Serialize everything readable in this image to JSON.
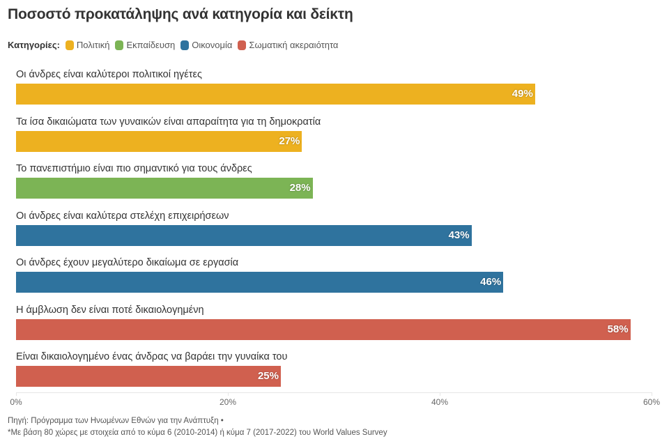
{
  "header": {
    "title": "Ποσοστό προκατάληψης ανά κατηγορία και δείκτη"
  },
  "legend": {
    "title": "Κατηγορίες:",
    "items": [
      {
        "label": "Πολιτική",
        "color": "#EDB120"
      },
      {
        "label": "Εκπαίδευση",
        "color": "#7CB455"
      },
      {
        "label": "Οικονομία",
        "color": "#2F739E"
      },
      {
        "label": "Σωματική ακεραιότητα",
        "color": "#D0604F"
      }
    ]
  },
  "chart_data": {
    "type": "bar",
    "orientation": "horizontal",
    "xlim": [
      0,
      60
    ],
    "ticks": [
      "0%",
      "20%",
      "40%",
      "60%"
    ],
    "tick_values": [
      0,
      20,
      40,
      60
    ],
    "categories": [
      "Οι άνδρες είναι καλύτεροι πολιτικοί ηγέτες",
      "Τα ίσα δικαιώματα των γυναικών είναι απαραίτητα για τη δημοκρατία",
      "Το πανεπιστήμιο είναι πιο σημαντικό για τους άνδρες",
      "Οι άνδρες είναι καλύτερα στελέχη επιχειρήσεων",
      "Οι άνδρες έχουν μεγαλύτερο δικαίωμα σε εργασία",
      "Η άμβλωση δεν είναι ποτέ δικαιολογημένη",
      "Είναι δικαιολογημένο ένας άνδρας να βαράει την γυναίκα του"
    ],
    "values": [
      49,
      27,
      28,
      43,
      46,
      58,
      25
    ],
    "value_labels": [
      "49%",
      "27%",
      "28%",
      "43%",
      "46%",
      "58%",
      "25%"
    ],
    "groups": [
      "Πολιτική",
      "Πολιτική",
      "Εκπαίδευση",
      "Οικονομία",
      "Οικονομία",
      "Σωματική ακεραιότητα",
      "Σωματική ακεραιότητα"
    ],
    "colors": [
      "#EDB120",
      "#EDB120",
      "#7CB455",
      "#2F739E",
      "#2F739E",
      "#D0604F",
      "#D0604F"
    ]
  },
  "footer": {
    "source": "Πηγή: Πρόγραμμα των Ηνωμένων Εθνών για την Ανάπτυξη •",
    "note": "*Με βάση 80 χώρες με στοιχεία από το κύμα 6 (2010-2014) ή κύμα 7 (2017-2022) του World Values Survey"
  }
}
